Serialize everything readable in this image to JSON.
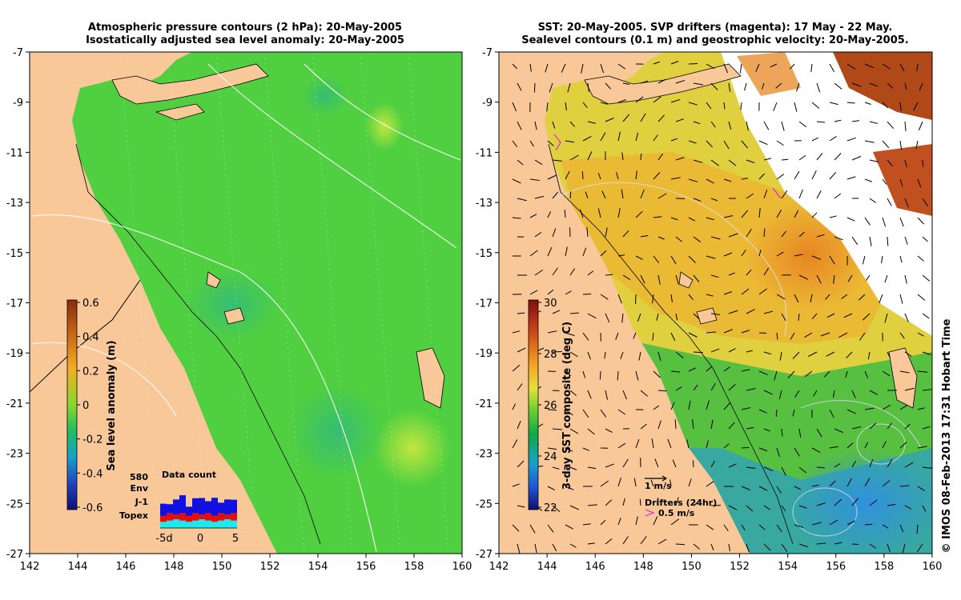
{
  "left_panel": {
    "title_line1": "Atmospheric pressure contours (2 hPa): 20-May-2005",
    "title_line2": "Isostatically adjusted sea level anomaly: 20-May-2005",
    "colorbar": {
      "label": "Sea level anomaly (m)",
      "ticks": [
        "0.6",
        "0.4",
        "0.2",
        "0",
        "-0.2",
        "-0.4",
        "-0.6"
      ],
      "colors": [
        "#8a2a10",
        "#c86a18",
        "#f0b020",
        "#88d830",
        "#20c060",
        "#18a0c8",
        "#2040c0",
        "#101070"
      ]
    },
    "data_count": {
      "title": "Data count",
      "max_label": "580",
      "env_label": "Env",
      "j1_label": "J-1",
      "topex_label": "Topex",
      "x_labels": [
        "-5d",
        "0",
        "5"
      ],
      "env": [
        0.4,
        0.3,
        0.5,
        0.6,
        0.3,
        0.5,
        0.55,
        0.4,
        0.6,
        0.35,
        0.5,
        0.45
      ],
      "j1": [
        0.25,
        0.3,
        0.2,
        0.3,
        0.25,
        0.3,
        0.2,
        0.3,
        0.25,
        0.3,
        0.2,
        0.3
      ],
      "topex": [
        0.25,
        0.3,
        0.35,
        0.3,
        0.25,
        0.3,
        0.35,
        0.3,
        0.25,
        0.3,
        0.35,
        0.3
      ],
      "env_color": "#1010e0",
      "j1_color": "#e01010",
      "topex_color": "#20e8f0"
    }
  },
  "right_panel": {
    "title_line1": "SST: 20-May-2005. SVP drifters (magenta): 17 May - 22 May.",
    "title_line2": "Sealevel contours (0.1 m) and geostrophic velocity: 20-May-2005.",
    "colorbar": {
      "label": "3-day SST composite (deg C)",
      "ticks": [
        "30",
        "28",
        "26",
        "24",
        "22"
      ],
      "colors": [
        "#801010",
        "#c84018",
        "#f0a020",
        "#e8e040",
        "#70d030",
        "#10a848",
        "#18a0c8",
        "#2050d0",
        "#101070"
      ]
    },
    "velocity_scale_label": "1 m/s",
    "drifters_label": "Drifters (24hr)",
    "drifters_speed_label": "0.5 m/s"
  },
  "axes": {
    "x_ticks": [
      "142",
      "144",
      "146",
      "148",
      "150",
      "152",
      "154",
      "156",
      "158",
      "160"
    ],
    "y_ticks": [
      "-7",
      "-9",
      "-11",
      "-13",
      "-15",
      "-17",
      "-19",
      "-21",
      "-23",
      "-25",
      "-27"
    ]
  },
  "colors": {
    "land": "#f8c898",
    "ocean_anomaly": "#50d040",
    "ocean_sst": "#e0d040"
  },
  "credit": "© IMOS 08-Feb-2013 17:31 Hobart Time"
}
